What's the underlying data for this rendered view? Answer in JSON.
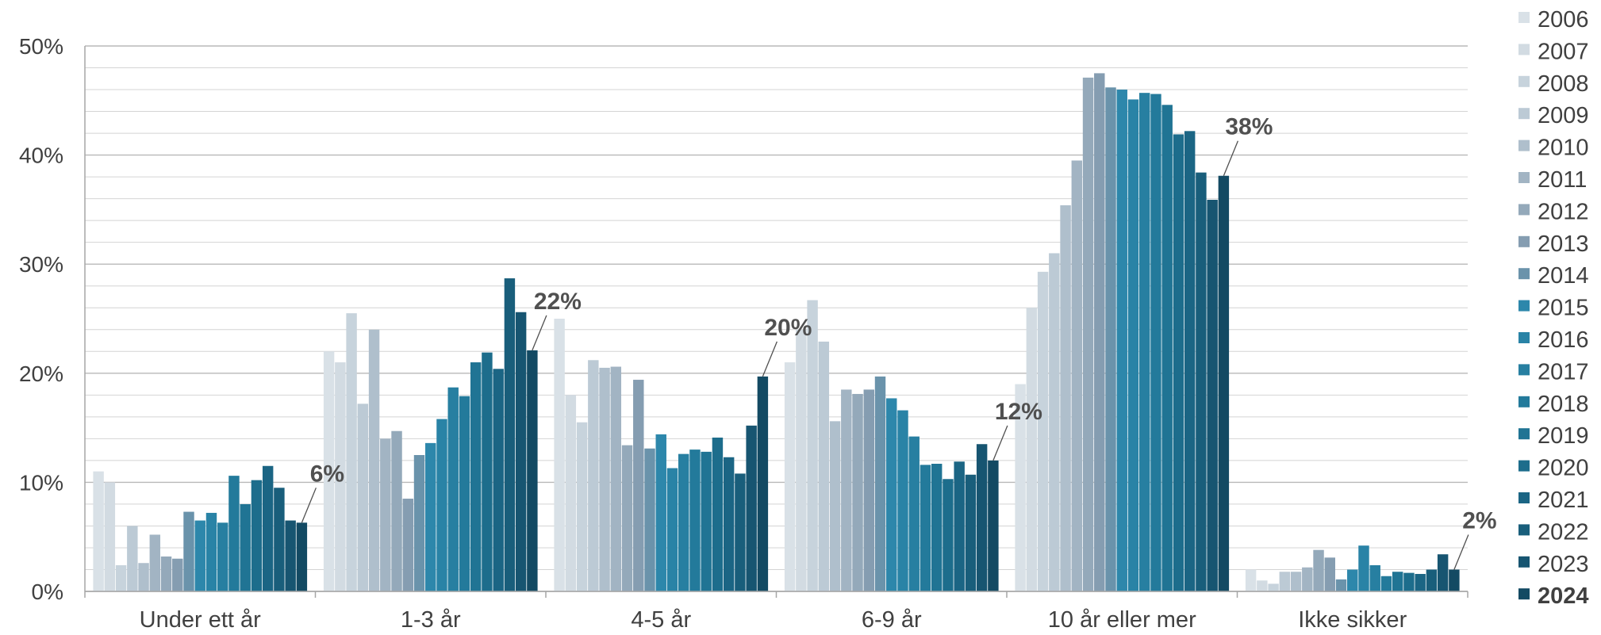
{
  "chart_data": {
    "type": "bar",
    "title": "",
    "xlabel": "",
    "ylabel": "",
    "ylim": [
      0,
      50
    ],
    "y_ticks": [
      "0%",
      "10%",
      "20%",
      "30%",
      "40%",
      "50%"
    ],
    "grid": true,
    "legend_position": "right",
    "categories": [
      "Under ett år",
      "1-3 år",
      "4-5 år",
      "6-9 år",
      "10 år eller mer",
      "Ikke sikker"
    ],
    "series": [
      {
        "name": "2006",
        "color": "#d9e1e7",
        "values": [
          11.0,
          22.0,
          25.0,
          21.0,
          19.0,
          2.0
        ]
      },
      {
        "name": "2007",
        "color": "#d2dbe2",
        "values": [
          10.0,
          21.0,
          18.0,
          24.0,
          26.0,
          1.0
        ]
      },
      {
        "name": "2008",
        "color": "#c7d3dc",
        "values": [
          2.4,
          25.5,
          15.5,
          26.7,
          29.3,
          0.7
        ]
      },
      {
        "name": "2009",
        "color": "#bccad5",
        "values": [
          6.0,
          17.2,
          21.2,
          22.9,
          31.0,
          1.8
        ]
      },
      {
        "name": "2010",
        "color": "#afbfcc",
        "values": [
          2.6,
          24.0,
          20.5,
          15.6,
          35.4,
          1.8
        ]
      },
      {
        "name": "2011",
        "color": "#a2b4c3",
        "values": [
          5.2,
          14.0,
          20.6,
          18.5,
          39.5,
          2.2
        ]
      },
      {
        "name": "2012",
        "color": "#94a9ba",
        "values": [
          3.2,
          14.7,
          13.4,
          18.1,
          47.1,
          3.8
        ]
      },
      {
        "name": "2013",
        "color": "#859db1",
        "values": [
          3.0,
          8.5,
          19.4,
          18.5,
          47.5,
          3.1
        ]
      },
      {
        "name": "2014",
        "color": "#6a93ab",
        "values": [
          7.3,
          12.5,
          13.1,
          19.7,
          46.2,
          1.1
        ]
      },
      {
        "name": "2015",
        "color": "#2d87ab",
        "values": [
          6.5,
          13.6,
          14.4,
          17.7,
          46.0,
          2.0
        ]
      },
      {
        "name": "2016",
        "color": "#2983a6",
        "values": [
          7.2,
          15.8,
          11.3,
          16.6,
          45.1,
          4.2
        ]
      },
      {
        "name": "2017",
        "color": "#277fa1",
        "values": [
          6.3,
          18.7,
          12.6,
          14.2,
          45.7,
          2.4
        ]
      },
      {
        "name": "2018",
        "color": "#237a9b",
        "values": [
          10.6,
          17.9,
          13.0,
          11.6,
          45.6,
          1.4
        ]
      },
      {
        "name": "2019",
        "color": "#207494",
        "values": [
          8.0,
          21.0,
          12.8,
          11.7,
          44.6,
          1.8
        ]
      },
      {
        "name": "2020",
        "color": "#1d6d8c",
        "values": [
          10.2,
          21.9,
          14.1,
          10.3,
          41.9,
          1.7
        ]
      },
      {
        "name": "2021",
        "color": "#1b6584",
        "values": [
          11.5,
          20.4,
          12.3,
          11.9,
          42.2,
          1.6
        ]
      },
      {
        "name": "2022",
        "color": "#195e7b",
        "values": [
          9.5,
          28.7,
          10.8,
          10.7,
          38.4,
          2.0
        ]
      },
      {
        "name": "2023",
        "color": "#175571",
        "values": [
          6.5,
          25.6,
          15.2,
          13.5,
          35.9,
          3.4
        ]
      },
      {
        "name": "2024",
        "color": "#134a63",
        "values": [
          6.3,
          22.1,
          19.7,
          12.0,
          38.1,
          2.0
        ]
      }
    ],
    "data_labels": [
      "6%",
      "22%",
      "20%",
      "12%",
      "38%",
      "2%"
    ],
    "highlight_series": "2024"
  }
}
